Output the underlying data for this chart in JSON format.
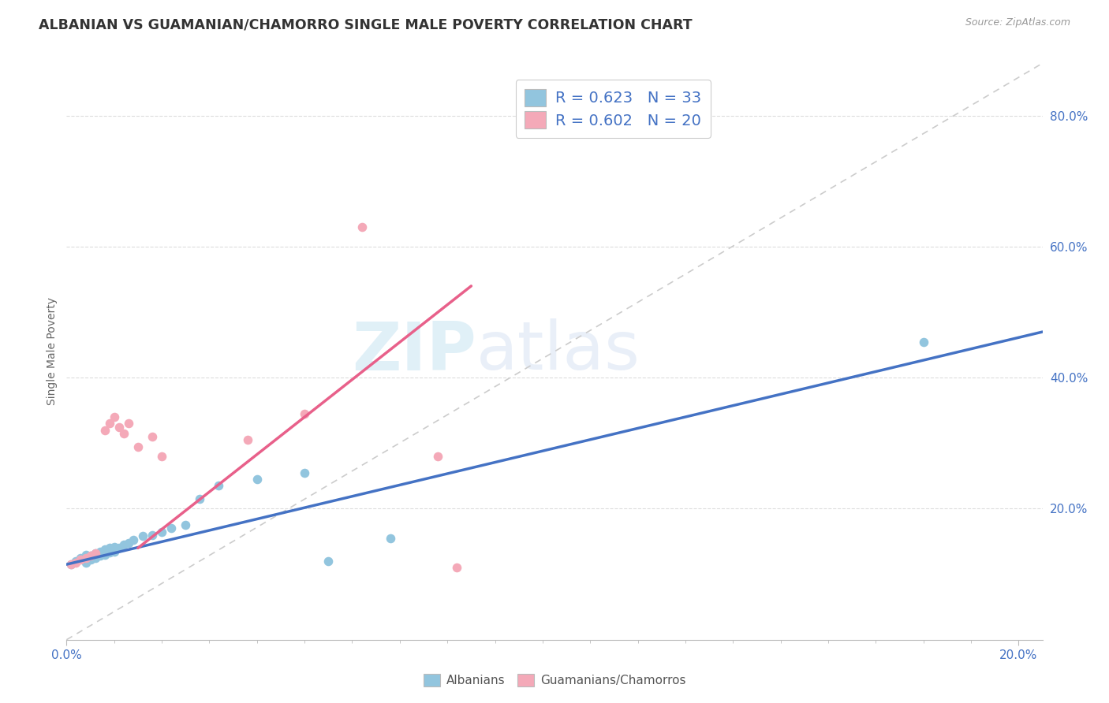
{
  "title": "ALBANIAN VS GUAMANIAN/CHAMORRO SINGLE MALE POVERTY CORRELATION CHART",
  "source": "Source: ZipAtlas.com",
  "ylabel": "Single Male Poverty",
  "albanian_color": "#92C5DE",
  "guamanian_color": "#F4A9B8",
  "albanian_line_color": "#4472C4",
  "guamanian_line_color": "#E8608A",
  "diagonal_color": "#CCCCCC",
  "watermark_zip": "ZIP",
  "watermark_atlas": "atlas",
  "xlim": [
    0.0,
    0.205
  ],
  "ylim": [
    0.0,
    0.88
  ],
  "ytick_vals": [
    0.0,
    0.2,
    0.4,
    0.6,
    0.8
  ],
  "ytick_labels": [
    "",
    "20.0%",
    "40.0%",
    "60.0%",
    "80.0%"
  ],
  "xtick_vals": [
    0.0,
    0.2
  ],
  "xtick_labels": [
    "0.0%",
    "20.0%"
  ],
  "legend_entries": [
    {
      "label": "R = 0.623   N = 33",
      "color": "#92C5DE"
    },
    {
      "label": "R = 0.602   N = 20",
      "color": "#F4A9B8"
    }
  ],
  "bottom_legend": [
    "Albanians",
    "Guamanians/Chamorros"
  ],
  "albanian_scatter": [
    [
      0.001,
      0.115
    ],
    [
      0.002,
      0.12
    ],
    [
      0.003,
      0.125
    ],
    [
      0.004,
      0.118
    ],
    [
      0.004,
      0.13
    ],
    [
      0.005,
      0.122
    ],
    [
      0.005,
      0.128
    ],
    [
      0.006,
      0.125
    ],
    [
      0.006,
      0.132
    ],
    [
      0.007,
      0.128
    ],
    [
      0.007,
      0.135
    ],
    [
      0.008,
      0.13
    ],
    [
      0.008,
      0.138
    ],
    [
      0.009,
      0.133
    ],
    [
      0.009,
      0.14
    ],
    [
      0.01,
      0.135
    ],
    [
      0.01,
      0.142
    ],
    [
      0.011,
      0.14
    ],
    [
      0.012,
      0.145
    ],
    [
      0.013,
      0.148
    ],
    [
      0.014,
      0.152
    ],
    [
      0.016,
      0.158
    ],
    [
      0.018,
      0.16
    ],
    [
      0.02,
      0.165
    ],
    [
      0.022,
      0.17
    ],
    [
      0.025,
      0.175
    ],
    [
      0.028,
      0.215
    ],
    [
      0.032,
      0.235
    ],
    [
      0.04,
      0.245
    ],
    [
      0.05,
      0.255
    ],
    [
      0.055,
      0.12
    ],
    [
      0.068,
      0.155
    ],
    [
      0.18,
      0.455
    ]
  ],
  "guamanian_scatter": [
    [
      0.001,
      0.115
    ],
    [
      0.002,
      0.118
    ],
    [
      0.003,
      0.122
    ],
    [
      0.004,
      0.125
    ],
    [
      0.005,
      0.128
    ],
    [
      0.006,
      0.132
    ],
    [
      0.008,
      0.32
    ],
    [
      0.009,
      0.33
    ],
    [
      0.01,
      0.34
    ],
    [
      0.011,
      0.325
    ],
    [
      0.012,
      0.315
    ],
    [
      0.013,
      0.33
    ],
    [
      0.015,
      0.295
    ],
    [
      0.018,
      0.31
    ],
    [
      0.02,
      0.28
    ],
    [
      0.038,
      0.305
    ],
    [
      0.05,
      0.345
    ],
    [
      0.062,
      0.63
    ],
    [
      0.078,
      0.28
    ],
    [
      0.082,
      0.11
    ]
  ],
  "title_fontsize": 12.5,
  "tick_fontsize": 11,
  "legend_fontsize": 14,
  "ylabel_fontsize": 10
}
